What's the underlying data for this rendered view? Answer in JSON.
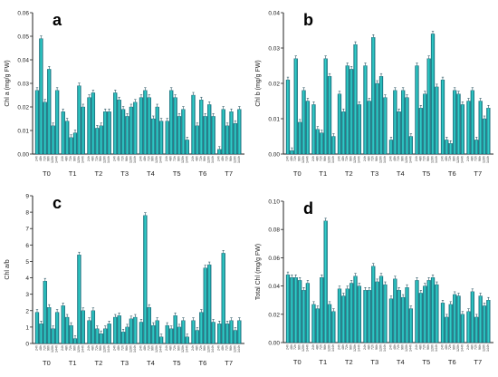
{
  "chart_data": [
    {
      "type": "bar",
      "panel_letter": "a",
      "ylabel": "Chl a (mg/g FW)",
      "ylim": [
        0,
        0.06
      ],
      "yticks": [
        "0.00",
        "0.01",
        "0.02",
        "0.03",
        "0.04",
        "0.05",
        "0.06"
      ],
      "groups": [
        "T0",
        "T1",
        "T2",
        "T3",
        "T4",
        "T5",
        "T6",
        "T7"
      ],
      "categories": [
        "24h",
        "48h",
        "72h",
        "96h",
        "120h",
        "144h"
      ],
      "grid": false,
      "values": [
        [
          0.027,
          0.049,
          0.022,
          0.036,
          0.012,
          0.027
        ],
        [
          0.018,
          0.014,
          0.007,
          0.009,
          0.029,
          0.02
        ],
        [
          0.024,
          0.026,
          0.011,
          0.012,
          0.018,
          0.018
        ],
        [
          0.026,
          0.023,
          0.019,
          0.016,
          0.02,
          0.022
        ],
        [
          0.024,
          0.027,
          0.024,
          0.015,
          0.02,
          0.014
        ],
        [
          0.014,
          0.027,
          0.024,
          0.016,
          0.019,
          0.006
        ],
        [
          0.025,
          0.012,
          0.023,
          0.016,
          0.021,
          0.016
        ],
        [
          0.002,
          0.019,
          0.012,
          0.018,
          0.013,
          0.019
        ]
      ]
    },
    {
      "type": "bar",
      "panel_letter": "b",
      "ylabel": "Chl b (mg/g FW)",
      "ylim": [
        0,
        0.04
      ],
      "yticks": [
        "0.00",
        "0.01",
        "0.02",
        "0.03",
        "0.04"
      ],
      "groups": [
        "T0",
        "T1",
        "T2",
        "T3",
        "T4",
        "T5",
        "T6",
        "T7"
      ],
      "categories": [
        "24h",
        "48h",
        "72h",
        "96h",
        "120h",
        "144h"
      ],
      "grid": false,
      "values": [
        [
          0.021,
          0.001,
          0.027,
          0.009,
          0.018,
          0.015
        ],
        [
          0.014,
          0.007,
          0.006,
          0.027,
          0.022,
          0.005
        ],
        [
          0.017,
          0.012,
          0.025,
          0.024,
          0.031,
          0.014
        ],
        [
          0.025,
          0.015,
          0.033,
          0.02,
          0.022,
          0.016
        ],
        [
          0.004,
          0.018,
          0.012,
          0.018,
          0.016,
          0.005
        ],
        [
          0.025,
          0.013,
          0.017,
          0.027,
          0.034,
          0.019
        ],
        [
          0.021,
          0.004,
          0.003,
          0.018,
          0.017,
          0.014
        ],
        [
          0.015,
          0.018,
          0.004,
          0.015,
          0.01,
          0.013
        ]
      ]
    },
    {
      "type": "bar",
      "panel_letter": "c",
      "ylabel": "Chl a/b",
      "ylim": [
        0,
        9
      ],
      "yticks": [
        "0",
        "1",
        "2",
        "3",
        "4",
        "5",
        "6",
        "7",
        "8",
        "9"
      ],
      "groups": [
        "T0",
        "T1",
        "T2",
        "T3",
        "T4",
        "T5",
        "T6",
        "T7"
      ],
      "categories": [
        "24h",
        "48h",
        "72h",
        "96h",
        "120h",
        "144h"
      ],
      "grid": false,
      "values": [
        [
          1.9,
          1.2,
          3.8,
          2.2,
          0.9,
          1.9
        ],
        [
          2.3,
          1.6,
          1.1,
          0.3,
          5.4,
          2.0
        ],
        [
          1.4,
          2.0,
          0.9,
          0.6,
          0.9,
          1.2
        ],
        [
          1.6,
          1.7,
          0.7,
          1.0,
          1.5,
          1.6
        ],
        [
          1.3,
          7.8,
          2.2,
          1.1,
          1.4,
          0.4
        ],
        [
          1.1,
          0.9,
          1.7,
          1.0,
          1.4,
          0.4
        ],
        [
          1.4,
          0.8,
          1.9,
          4.6,
          4.8,
          1.3
        ],
        [
          1.2,
          5.5,
          1.2,
          1.4,
          0.8,
          1.4
        ]
      ]
    },
    {
      "type": "bar",
      "panel_letter": "d",
      "ylabel": "Total Chl (mg/g FW)",
      "ylim": [
        0,
        0.1
      ],
      "yticks": [
        "0.00",
        "0.02",
        "0.04",
        "0.06",
        "0.08",
        "0.10"
      ],
      "groups": [
        "T0",
        "T1",
        "T2",
        "T3",
        "T4",
        "T5",
        "T6",
        "T7"
      ],
      "categories": [
        "24h",
        "48h",
        "72h",
        "96h",
        "120h",
        "144h"
      ],
      "grid": false,
      "values": [
        [
          0.048,
          0.046,
          0.046,
          0.044,
          0.037,
          0.042
        ],
        [
          0.027,
          0.024,
          0.046,
          0.086,
          0.027,
          0.022
        ],
        [
          0.038,
          0.033,
          0.038,
          0.042,
          0.047,
          0.04
        ],
        [
          0.037,
          0.037,
          0.054,
          0.043,
          0.047,
          0.041
        ],
        [
          0.031,
          0.045,
          0.037,
          0.032,
          0.039,
          0.024
        ],
        [
          0.044,
          0.035,
          0.04,
          0.044,
          0.046,
          0.041
        ],
        [
          0.028,
          0.018,
          0.027,
          0.034,
          0.033,
          0.02
        ],
        [
          0.022,
          0.036,
          0.018,
          0.033,
          0.026,
          0.03
        ]
      ]
    }
  ]
}
